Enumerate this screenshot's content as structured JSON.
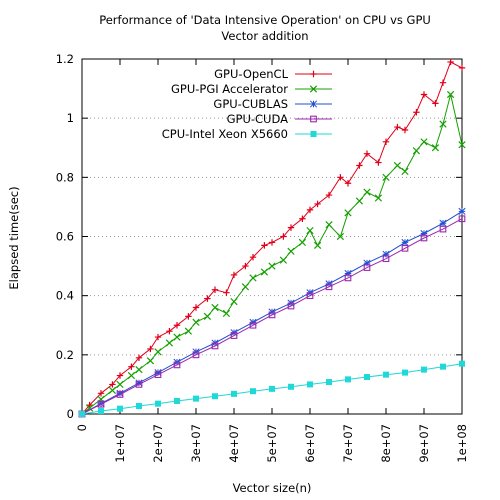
{
  "chart_data": {
    "type": "line",
    "title": "Performance of 'Data Intensive Operation' on CPU vs GPU",
    "subtitle": "Vector addition",
    "xlabel": "Vector size(n)",
    "ylabel": "Elapsed time(sec)",
    "xlim": [
      0,
      100000000
    ],
    "ylim": [
      0,
      1.2
    ],
    "xticks": [
      0,
      10000000,
      20000000,
      30000000,
      40000000,
      50000000,
      60000000,
      70000000,
      80000000,
      90000000,
      100000000
    ],
    "xtick_labels": [
      "0",
      "1e+07",
      "2e+07",
      "3e+07",
      "4e+07",
      "5e+07",
      "6e+07",
      "7e+07",
      "8e+07",
      "9e+07",
      "1e+08"
    ],
    "yticks": [
      0,
      0.2,
      0.4,
      0.6,
      0.8,
      1.0,
      1.2
    ],
    "ytick_labels": [
      "0",
      "0.2",
      "0.4",
      "0.6",
      "0.8",
      "1",
      "1.2"
    ],
    "grid": "horizontal dotted",
    "legend_position": "top-left",
    "series": [
      {
        "name": "GPU-OpenCL",
        "color": "#e0001a",
        "marker": "plus",
        "x": [
          0,
          2000000,
          5000000,
          8000000,
          10000000,
          13000000,
          15000000,
          18000000,
          20000000,
          23000000,
          25000000,
          28000000,
          30000000,
          33000000,
          35000000,
          38000000,
          40000000,
          43000000,
          45000000,
          48000000,
          50000000,
          53000000,
          55000000,
          58000000,
          60000000,
          62000000,
          65000000,
          68000000,
          70000000,
          73000000,
          75000000,
          78000000,
          80000000,
          83000000,
          85000000,
          88000000,
          90000000,
          93000000,
          95000000,
          97000000,
          100000000
        ],
        "y": [
          0,
          0.03,
          0.07,
          0.1,
          0.13,
          0.16,
          0.19,
          0.22,
          0.26,
          0.28,
          0.3,
          0.33,
          0.36,
          0.39,
          0.42,
          0.41,
          0.47,
          0.5,
          0.53,
          0.57,
          0.58,
          0.6,
          0.63,
          0.66,
          0.69,
          0.71,
          0.74,
          0.8,
          0.78,
          0.84,
          0.88,
          0.85,
          0.92,
          0.97,
          0.96,
          1.02,
          1.08,
          1.05,
          1.12,
          1.19,
          1.17
        ]
      },
      {
        "name": "GPU-PGI Accelerator",
        "color": "#14a000",
        "marker": "cross",
        "x": [
          0,
          2000000,
          5000000,
          8000000,
          10000000,
          13000000,
          15000000,
          18000000,
          20000000,
          23000000,
          25000000,
          28000000,
          30000000,
          33000000,
          35000000,
          38000000,
          40000000,
          43000000,
          45000000,
          48000000,
          50000000,
          53000000,
          55000000,
          58000000,
          60000000,
          62000000,
          65000000,
          68000000,
          70000000,
          73000000,
          75000000,
          78000000,
          80000000,
          83000000,
          85000000,
          88000000,
          90000000,
          93000000,
          95000000,
          97000000,
          100000000
        ],
        "y": [
          0,
          0.02,
          0.05,
          0.08,
          0.1,
          0.13,
          0.15,
          0.18,
          0.21,
          0.24,
          0.26,
          0.28,
          0.31,
          0.33,
          0.36,
          0.34,
          0.38,
          0.43,
          0.46,
          0.48,
          0.5,
          0.52,
          0.55,
          0.58,
          0.62,
          0.57,
          0.64,
          0.6,
          0.68,
          0.72,
          0.75,
          0.73,
          0.8,
          0.84,
          0.82,
          0.89,
          0.92,
          0.9,
          0.98,
          1.08,
          0.91
        ]
      },
      {
        "name": "GPU-CUBLAS",
        "color": "#2050d0",
        "marker": "star",
        "x": [
          0,
          5000000,
          10000000,
          15000000,
          20000000,
          25000000,
          30000000,
          35000000,
          40000000,
          45000000,
          50000000,
          55000000,
          60000000,
          65000000,
          70000000,
          75000000,
          80000000,
          85000000,
          90000000,
          95000000,
          100000000
        ],
        "y": [
          0,
          0.035,
          0.07,
          0.105,
          0.14,
          0.175,
          0.21,
          0.24,
          0.275,
          0.31,
          0.345,
          0.375,
          0.41,
          0.44,
          0.475,
          0.51,
          0.54,
          0.58,
          0.61,
          0.645,
          0.685
        ]
      },
      {
        "name": "GPU-CUDA",
        "color": "#9c27b0",
        "marker": "square-open",
        "x": [
          0,
          5000000,
          10000000,
          15000000,
          20000000,
          25000000,
          30000000,
          35000000,
          40000000,
          45000000,
          50000000,
          55000000,
          60000000,
          65000000,
          70000000,
          75000000,
          80000000,
          85000000,
          90000000,
          95000000,
          100000000
        ],
        "y": [
          0,
          0.033,
          0.066,
          0.1,
          0.133,
          0.166,
          0.2,
          0.23,
          0.265,
          0.3,
          0.335,
          0.365,
          0.4,
          0.43,
          0.46,
          0.495,
          0.525,
          0.56,
          0.595,
          0.625,
          0.66
        ]
      },
      {
        "name": "CPU-Intel Xeon X5660",
        "color": "#20d8d8",
        "marker": "square-filled",
        "x": [
          0,
          5000000,
          10000000,
          15000000,
          20000000,
          25000000,
          30000000,
          35000000,
          40000000,
          45000000,
          50000000,
          55000000,
          60000000,
          65000000,
          70000000,
          75000000,
          80000000,
          85000000,
          90000000,
          95000000,
          100000000
        ],
        "y": [
          0,
          0.01,
          0.018,
          0.027,
          0.035,
          0.044,
          0.052,
          0.06,
          0.068,
          0.077,
          0.085,
          0.092,
          0.1,
          0.108,
          0.117,
          0.125,
          0.133,
          0.14,
          0.15,
          0.16,
          0.17
        ]
      }
    ]
  }
}
